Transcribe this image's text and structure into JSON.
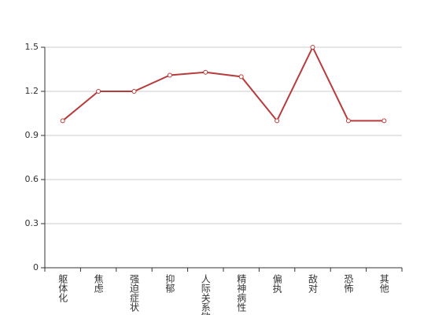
{
  "chart_data": {
    "type": "line",
    "categories": [
      "躯体化",
      "焦虑",
      "强迫症状",
      "抑郁",
      "人际关系敏感",
      "精神病性",
      "偏执",
      "敌对",
      "恐怖",
      "其他"
    ],
    "series": [
      {
        "color": "#b83b3b",
        "values": [
          1.0,
          1.2,
          1.2,
          1.31,
          1.33,
          1.3,
          1.0,
          1.5,
          1.0,
          1.0
        ]
      }
    ],
    "ylim": [
      0,
      1.5
    ],
    "yticks": [
      0,
      0.3,
      0.6,
      0.9,
      1.2,
      1.5
    ],
    "grid": true
  }
}
